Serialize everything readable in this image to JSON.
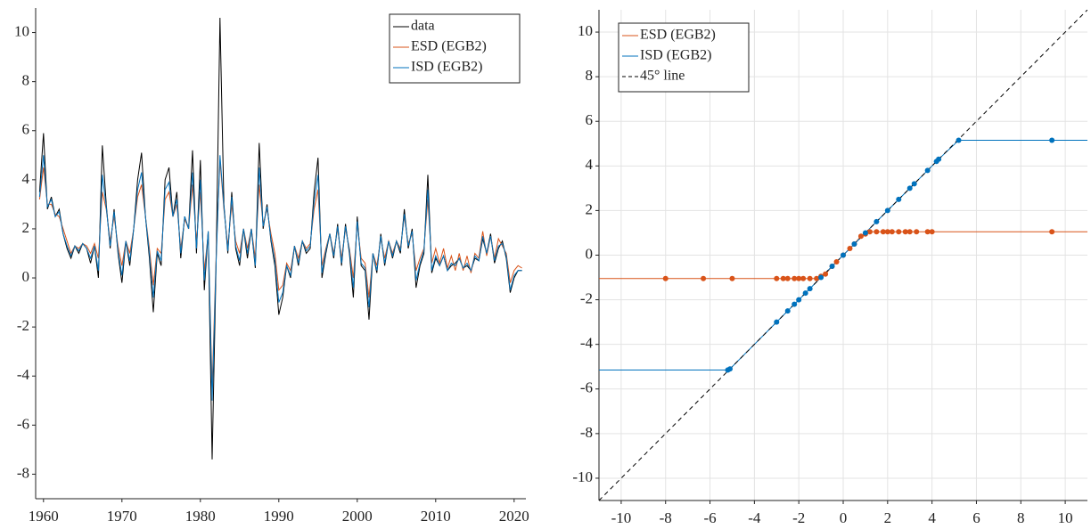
{
  "chart_data": [
    {
      "type": "line",
      "x": [
        1959.5,
        1960,
        1960.5,
        1961,
        1961.5,
        1962,
        1962.5,
        1963,
        1963.5,
        1964,
        1964.5,
        1965,
        1965.5,
        1966,
        1966.5,
        1967,
        1967.5,
        1968,
        1968.5,
        1969,
        1969.5,
        1970,
        1970.5,
        1971,
        1971.5,
        1972,
        1972.5,
        1973,
        1973.5,
        1974,
        1974.5,
        1975,
        1975.5,
        1976,
        1976.5,
        1977,
        1977.5,
        1978,
        1978.5,
        1979,
        1979.5,
        1980,
        1980.5,
        1981,
        1981.5,
        1982,
        1982.5,
        1983,
        1983.5,
        1984,
        1984.5,
        1985,
        1985.5,
        1986,
        1986.5,
        1987,
        1987.5,
        1988,
        1988.5,
        1989,
        1989.5,
        1990,
        1990.5,
        1991,
        1991.5,
        1992,
        1992.5,
        1993,
        1993.5,
        1994,
        1994.5,
        1995,
        1995.5,
        1996,
        1996.5,
        1997,
        1997.5,
        1998,
        1998.5,
        1999,
        1999.5,
        2000,
        2000.5,
        2001,
        2001.5,
        2002,
        2002.5,
        2003,
        2003.5,
        2004,
        2004.5,
        2005,
        2005.5,
        2006,
        2006.5,
        2007,
        2007.5,
        2008,
        2008.5,
        2009,
        2009.5,
        2010,
        2010.5,
        2011,
        2011.5,
        2012,
        2012.5,
        2013,
        2013.5,
        2014,
        2014.5,
        2015,
        2015.5,
        2016,
        2016.5,
        2017,
        2017.5,
        2018,
        2018.5,
        2019,
        2019.5,
        2020,
        2020.5,
        2021
      ],
      "series": [
        {
          "name": "data",
          "color": "#000000",
          "values": [
            3.5,
            5.9,
            2.8,
            3.3,
            2.5,
            2.8,
            1.8,
            1.2,
            0.8,
            1.3,
            1.0,
            1.4,
            1.2,
            0.6,
            1.3,
            0.0,
            5.4,
            3.0,
            1.2,
            2.8,
            1.0,
            -0.2,
            1.5,
            0.5,
            2.0,
            4.0,
            5.1,
            2.5,
            0.8,
            -1.4,
            1.0,
            0.5,
            4.0,
            4.5,
            2.5,
            3.5,
            0.8,
            2.5,
            2.0,
            5.2,
            1.0,
            4.8,
            -0.5,
            1.9,
            -7.4,
            0.5,
            10.6,
            3.0,
            1.0,
            3.5,
            1.2,
            0.5,
            2.0,
            0.8,
            2.0,
            0.4,
            5.5,
            2.0,
            3.0,
            1.5,
            0.5,
            -1.5,
            -0.8,
            0.5,
            0.0,
            1.3,
            0.5,
            1.5,
            1.0,
            1.2,
            3.5,
            4.9,
            0.0,
            1.0,
            1.8,
            0.8,
            2.2,
            0.5,
            2.2,
            1.0,
            -0.8,
            2.5,
            0.5,
            0.3,
            -1.7,
            1.0,
            0.2,
            1.8,
            0.5,
            1.5,
            0.8,
            1.5,
            1.0,
            2.8,
            1.2,
            2.0,
            -0.4,
            0.5,
            1.0,
            4.2,
            0.2,
            0.8,
            0.5,
            0.9,
            0.3,
            0.5,
            0.6,
            0.8,
            0.4,
            0.5,
            0.3,
            0.8,
            0.7,
            1.6,
            1.0,
            1.8,
            0.6,
            1.2,
            1.5,
            0.8,
            -0.6,
            0.0,
            0.3,
            0.3
          ]
        },
        {
          "name": "ESD (EGB2)",
          "color": "#d95319",
          "values": [
            3.2,
            4.5,
            3.0,
            3.0,
            2.6,
            2.5,
            2.0,
            1.5,
            1.0,
            1.3,
            1.2,
            1.4,
            1.3,
            1.0,
            1.4,
            0.8,
            3.5,
            2.8,
            1.5,
            2.5,
            1.3,
            0.5,
            1.5,
            1.0,
            2.0,
            3.3,
            3.8,
            2.5,
            1.2,
            -0.3,
            1.2,
            1.0,
            3.2,
            3.5,
            2.5,
            3.0,
            1.2,
            2.4,
            2.0,
            3.8,
            1.5,
            3.5,
            0.3,
            1.8,
            -4.5,
            0.8,
            4.8,
            2.8,
            1.3,
            3.0,
            1.5,
            1.0,
            2.0,
            1.2,
            2.0,
            0.8,
            3.8,
            2.2,
            2.8,
            1.8,
            1.0,
            -0.5,
            -0.3,
            0.6,
            0.3,
            1.3,
            0.8,
            1.5,
            1.2,
            1.4,
            2.8,
            3.6,
            0.5,
            1.2,
            1.8,
            1.0,
            2.0,
            0.8,
            2.0,
            1.2,
            0.0,
            2.2,
            0.8,
            0.6,
            -0.8,
            1.0,
            0.5,
            1.6,
            0.8,
            1.5,
            1.0,
            1.5,
            1.2,
            2.5,
            1.4,
            1.8,
            0.3,
            0.8,
            1.2,
            3.2,
            0.6,
            1.2,
            0.6,
            1.2,
            0.4,
            0.9,
            0.3,
            1.0,
            0.3,
            0.9,
            0.2,
            1.0,
            0.8,
            1.9,
            0.9,
            1.7,
            0.8,
            1.6,
            1.3,
            1.0,
            -0.2,
            0.3,
            0.5,
            0.4
          ]
        },
        {
          "name": "ISD (EGB2)",
          "color": "#0072bd",
          "values": [
            3.3,
            5.0,
            2.9,
            3.2,
            2.5,
            2.7,
            1.8,
            1.3,
            0.9,
            1.3,
            1.1,
            1.4,
            1.2,
            0.8,
            1.3,
            0.3,
            4.2,
            2.9,
            1.3,
            2.7,
            1.1,
            0.1,
            1.5,
            0.7,
            2.0,
            3.6,
            4.3,
            2.5,
            1.0,
            -0.8,
            1.1,
            0.7,
            3.6,
            3.9,
            2.5,
            3.2,
            1.0,
            2.5,
            2.0,
            4.3,
            1.2,
            4.0,
            -0.1,
            1.9,
            -5.0,
            0.6,
            5.0,
            2.9,
            1.1,
            3.3,
            1.3,
            0.7,
            2.0,
            1.0,
            2.0,
            0.5,
            4.5,
            2.1,
            2.9,
            1.6,
            0.7,
            -1.0,
            -0.6,
            0.5,
            0.1,
            1.3,
            0.6,
            1.5,
            1.1,
            1.3,
            3.1,
            4.2,
            0.2,
            1.1,
            1.8,
            0.9,
            2.1,
            0.6,
            2.1,
            1.1,
            -0.4,
            2.3,
            0.6,
            0.4,
            -1.2,
            1.0,
            0.3,
            1.7,
            0.6,
            1.5,
            0.9,
            1.5,
            1.1,
            2.6,
            1.3,
            1.9,
            -0.1,
            0.6,
            1.1,
            3.6,
            0.3,
            0.9,
            0.5,
            0.9,
            0.3,
            0.6,
            0.5,
            0.8,
            0.4,
            0.6,
            0.3,
            0.9,
            0.7,
            1.7,
            1.0,
            1.7,
            0.7,
            1.3,
            1.4,
            0.9,
            -0.5,
            0.1,
            0.3,
            0.3
          ]
        }
      ],
      "xlim": [
        1959,
        2021.5
      ],
      "xticks": [
        1960,
        1970,
        1980,
        1990,
        2000,
        2010,
        2020
      ],
      "ylim": [
        -9,
        11
      ],
      "yticks": [
        -8,
        -6,
        -4,
        -2,
        0,
        2,
        4,
        6,
        8,
        10
      ],
      "grid": false,
      "legend": "upper right"
    },
    {
      "type": "scatter",
      "series": [
        {
          "name": "ESD (EGB2)",
          "color": "#d95319",
          "x": [
            -8,
            -6.3,
            -5,
            -3,
            -2.7,
            -2.5,
            -2.2,
            -2,
            -1.8,
            -1.5,
            -1.2,
            -1,
            -0.8,
            -0.5,
            -0.3,
            0,
            0.3,
            0.5,
            0.8,
            1,
            1.2,
            1.5,
            1.8,
            2,
            2.2,
            2.5,
            2.8,
            3,
            3.3,
            3.8,
            4,
            9.4
          ],
          "values": [
            -1.05,
            -1.05,
            -1.05,
            -1.05,
            -1.05,
            -1.05,
            -1.05,
            -1.05,
            -1.05,
            -1.05,
            -1.05,
            -0.95,
            -0.85,
            -0.5,
            -0.3,
            0,
            0.3,
            0.5,
            0.85,
            0.95,
            1.05,
            1.05,
            1.05,
            1.05,
            1.05,
            1.05,
            1.05,
            1.05,
            1.05,
            1.05,
            1.05,
            1.05
          ]
        },
        {
          "name": "ISD (EGB2)",
          "color": "#0072bd",
          "x": [
            -5.2,
            -5.1,
            -3,
            -2.5,
            -2.2,
            -2,
            -1.7,
            -1.5,
            -1,
            -0.5,
            0,
            0.5,
            1,
            1.5,
            2,
            2.5,
            3,
            3.2,
            3.8,
            4.2,
            4.3,
            5.2,
            9.4
          ],
          "values": [
            -5.15,
            -5.1,
            -3,
            -2.5,
            -2.2,
            -2,
            -1.7,
            -1.5,
            -1,
            -0.5,
            0,
            0.5,
            1,
            1.5,
            2,
            2.5,
            3,
            3.2,
            3.8,
            4.2,
            4.3,
            5.15,
            5.15
          ]
        }
      ],
      "reference_line": {
        "name": "45° line",
        "color": "#000000",
        "style": "dashed"
      },
      "xlim": [
        -11,
        11
      ],
      "xticks": [
        -10,
        -8,
        -6,
        -4,
        -2,
        0,
        2,
        4,
        6,
        8,
        10
      ],
      "ylim": [
        -11,
        11
      ],
      "yticks": [
        -10,
        -8,
        -6,
        -4,
        -2,
        0,
        2,
        4,
        6,
        8,
        10
      ],
      "grid": true,
      "legend": "upper left"
    }
  ]
}
